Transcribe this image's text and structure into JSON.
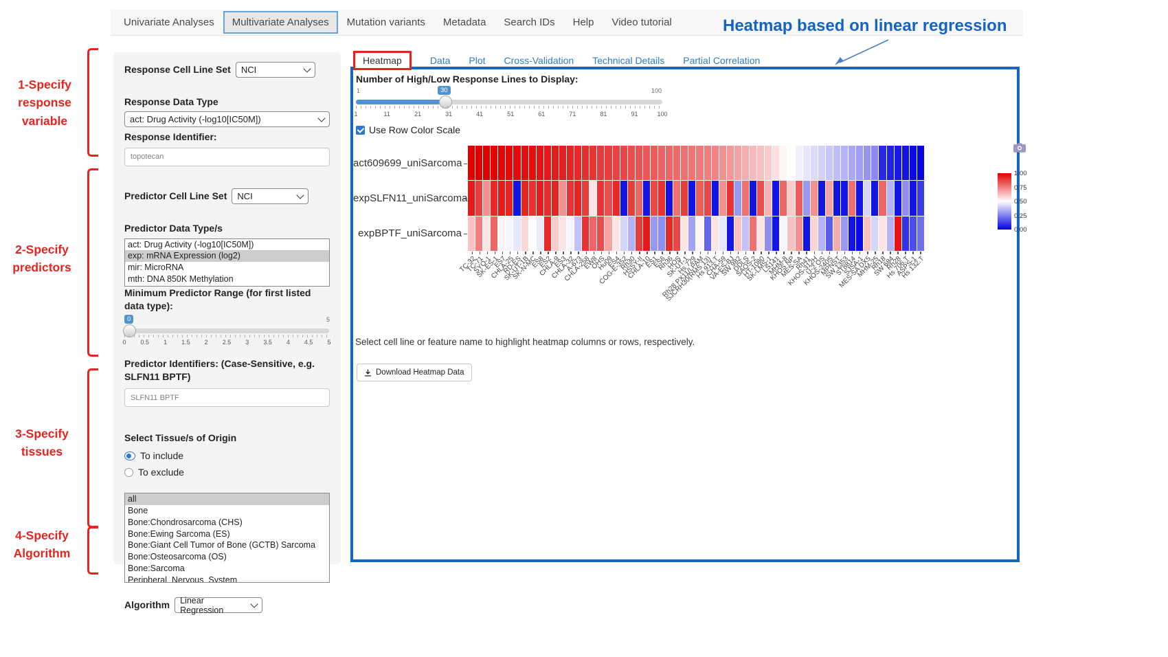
{
  "top_nav": {
    "items": [
      {
        "label": "Univariate Analyses",
        "active": false
      },
      {
        "label": "Multivariate Analyses",
        "active": true
      },
      {
        "label": "Mutation variants",
        "active": false
      },
      {
        "label": "Metadata",
        "active": false
      },
      {
        "label": "Search IDs",
        "active": false
      },
      {
        "label": "Help",
        "active": false
      },
      {
        "label": "Video tutorial",
        "active": false
      }
    ]
  },
  "heading": {
    "title": "Heatmap based on linear regression"
  },
  "annotations": [
    {
      "lines": [
        "1-Specify",
        "response",
        "variable"
      ]
    },
    {
      "lines": [
        "2-Specify",
        "predictors"
      ]
    },
    {
      "lines": [
        "3-Specify",
        "tissues"
      ]
    },
    {
      "lines": [
        "4-Specify",
        "Algorithm"
      ]
    }
  ],
  "sidebar": {
    "response_cell_line_set": {
      "label": "Response Cell Line Set",
      "value": "NCI"
    },
    "response_data_type": {
      "label": "Response Data Type",
      "value": "act: Drug Activity (-log10[IC50M])"
    },
    "response_identifier": {
      "label": "Response Identifier:",
      "value": "topotecan"
    },
    "predictor_cell_line_set": {
      "label": "Predictor Cell Line Set",
      "value": "NCI"
    },
    "predictor_data_types": {
      "label": "Predictor Data Type/s",
      "options": [
        {
          "label": "act: Drug Activity (-log10[IC50M])",
          "selected": false
        },
        {
          "label": "exp: mRNA Expression (log2)",
          "selected": true
        },
        {
          "label": "mir: MicroRNA",
          "selected": false
        },
        {
          "label": "mth: DNA 850K Methylation",
          "selected": false
        }
      ]
    },
    "min_predictor_range": {
      "label": "Minimum Predictor Range (for first listed data type):",
      "value": "0",
      "max_label": "5",
      "ticks": [
        "0",
        "0.5",
        "1",
        "1.5",
        "2",
        "2.5",
        "3",
        "3.5",
        "4",
        "4.5",
        "5"
      ]
    },
    "predictor_identifiers": {
      "label": "Predictor Identifiers: (Case-Sensitive, e.g. SLFN11 BPTF)",
      "value": "SLFN11 BPTF"
    },
    "tissues": {
      "label": "Select Tissue/s of Origin",
      "radios": [
        {
          "label": "To include",
          "selected": true
        },
        {
          "label": "To exclude",
          "selected": false
        }
      ],
      "options": [
        {
          "label": "all",
          "selected": true
        },
        {
          "label": "Bone",
          "selected": false
        },
        {
          "label": "Bone:Chondrosarcoma (CHS)",
          "selected": false
        },
        {
          "label": "Bone:Ewing Sarcoma (ES)",
          "selected": false
        },
        {
          "label": "Bone:Giant Cell Tumor of Bone (GCTB) Sarcoma",
          "selected": false
        },
        {
          "label": "Bone:Osteosarcoma (OS)",
          "selected": false
        },
        {
          "label": "Bone:Sarcoma",
          "selected": false
        },
        {
          "label": "Peripheral_Nervous_System",
          "selected": false
        }
      ]
    },
    "algorithm": {
      "label": "Algorithm",
      "value": "Linear Regression"
    }
  },
  "main": {
    "tabs": [
      {
        "label": "Heatmap",
        "active": true
      },
      {
        "label": "Data",
        "active": false
      },
      {
        "label": "Plot",
        "active": false
      },
      {
        "label": "Cross-Validation",
        "active": false
      },
      {
        "label": "Technical Details",
        "active": false
      },
      {
        "label": "Partial Correlation",
        "active": false
      }
    ],
    "slider": {
      "label": "Number of High/Low Response Lines to Display:",
      "min_label": "1",
      "max_label": "100",
      "value": "30",
      "ticks": [
        "1",
        "11",
        "21",
        "31",
        "41",
        "51",
        "61",
        "71",
        "81",
        "91",
        "100"
      ]
    },
    "row_color_scale": {
      "label": "Use Row Color Scale",
      "checked": true
    },
    "hint": "Select cell line or feature name to highlight heatmap columns or rows, respectively.",
    "download_button": "Download Heatmap Data"
  },
  "chart_data": {
    "type": "heatmap",
    "title": "",
    "rows": [
      "act609699_uniSarcoma",
      "expSLFN11_uniSarcoma",
      "expBPTF_uniSarcoma"
    ],
    "columns": [
      "TC-32",
      "TC-71",
      "SYO-1",
      "SK-ES-1",
      "ES7",
      "CHLA-25",
      "RD-ES",
      "SK-UT-1B",
      "SK-N-MC",
      "ES8",
      "ES2",
      "CHLA-9",
      "ES3",
      "CHLA-32",
      "A-673",
      "CHLA-258",
      "EW8",
      "OHS",
      "Hu09",
      "ES4",
      "COG-E-352",
      "Rh30",
      "HSSY-II",
      "CHLA-10",
      "ES1",
      "ES6",
      "Rh36",
      "HOS",
      "SK-UT-1",
      "Hs 729",
      "Rh28 PX11/LPAM",
      "SJCRH30(RMS 13)",
      "Hs 913.T",
      "CHA-59",
      "VA-ES-BJ",
      "SW 982",
      "DDLS",
      "SAOS-2",
      "HT-1080",
      "SK-LMS-1",
      "LS141",
      "MHM-8",
      "KHOS NP",
      "MES-SA",
      "Rh41",
      "KHOS-312H",
      "U-2 OS",
      "KHOS-240S",
      "MPNST",
      "SW 1353",
      "ST8814",
      "SJSA-1",
      "MES-SA DX5",
      "MHM-25",
      "Rh18",
      "SW 684",
      "Rh28",
      "Hs 706.T",
      "ASPS-1",
      "Hs 132.T"
    ],
    "values": [
      [
        1.0,
        1.0,
        1.0,
        0.99,
        0.99,
        0.98,
        0.98,
        0.97,
        0.97,
        0.96,
        0.95,
        0.95,
        0.94,
        0.93,
        0.92,
        0.91,
        0.9,
        0.89,
        0.88,
        0.87,
        0.86,
        0.85,
        0.84,
        0.83,
        0.82,
        0.81,
        0.8,
        0.79,
        0.78,
        0.77,
        0.76,
        0.75,
        0.74,
        0.72,
        0.7,
        0.68,
        0.66,
        0.64,
        0.62,
        0.6,
        0.56,
        0.52,
        0.5,
        0.47,
        0.45,
        0.43,
        0.41,
        0.39,
        0.37,
        0.35,
        0.33,
        0.31,
        0.29,
        0.27,
        0.08,
        0.06,
        0.05,
        0.04,
        0.02,
        0.01
      ],
      [
        0.95,
        0.88,
        0.72,
        0.92,
        0.95,
        0.93,
        0.04,
        0.93,
        0.9,
        0.94,
        0.91,
        0.93,
        0.72,
        0.9,
        0.93,
        0.88,
        0.55,
        0.9,
        0.85,
        0.92,
        0.04,
        0.88,
        0.8,
        0.04,
        0.86,
        0.9,
        0.04,
        0.78,
        0.88,
        0.04,
        0.82,
        0.86,
        0.04,
        0.72,
        0.9,
        0.3,
        0.78,
        0.04,
        0.85,
        0.65,
        0.04,
        0.8,
        0.6,
        0.82,
        0.3,
        0.72,
        0.04,
        0.68,
        0.04,
        0.04,
        0.78,
        0.04,
        0.42,
        0.04,
        0.8,
        0.35,
        0.04,
        0.28,
        0.04,
        0.12
      ],
      [
        0.62,
        0.75,
        0.55,
        0.8,
        0.52,
        0.48,
        0.45,
        0.58,
        0.5,
        0.46,
        0.92,
        0.6,
        0.55,
        0.48,
        0.38,
        0.9,
        0.8,
        0.85,
        0.68,
        0.55,
        0.42,
        0.35,
        0.88,
        0.95,
        0.3,
        0.28,
        0.92,
        0.86,
        0.55,
        0.32,
        0.52,
        0.2,
        0.55,
        0.45,
        0.04,
        0.62,
        0.38,
        0.78,
        0.55,
        0.28,
        0.04,
        0.48,
        0.62,
        0.72,
        0.04,
        0.58,
        0.35,
        0.18,
        0.66,
        0.3,
        0.04,
        0.02,
        0.62,
        0.42,
        0.55,
        0.35,
        0.96,
        0.1,
        0.15,
        0.22
      ]
    ],
    "colorscale": {
      "high": "#e10000",
      "mid": "#ffffff",
      "low": "#0000e1",
      "range": [
        0,
        1
      ]
    },
    "legend_ticks": [
      "1.00",
      "0.75",
      "0.50",
      "0.25",
      "0.00"
    ],
    "legend_position": "right",
    "x_tick_angle": -45
  },
  "colors": {
    "accent_blue": "#1565c0",
    "annotation_red": "#e8241f",
    "link_blue": "#2e7cc3",
    "slider_blue": "#4f93d3",
    "selected_row_gray": "#cdcdcd"
  }
}
